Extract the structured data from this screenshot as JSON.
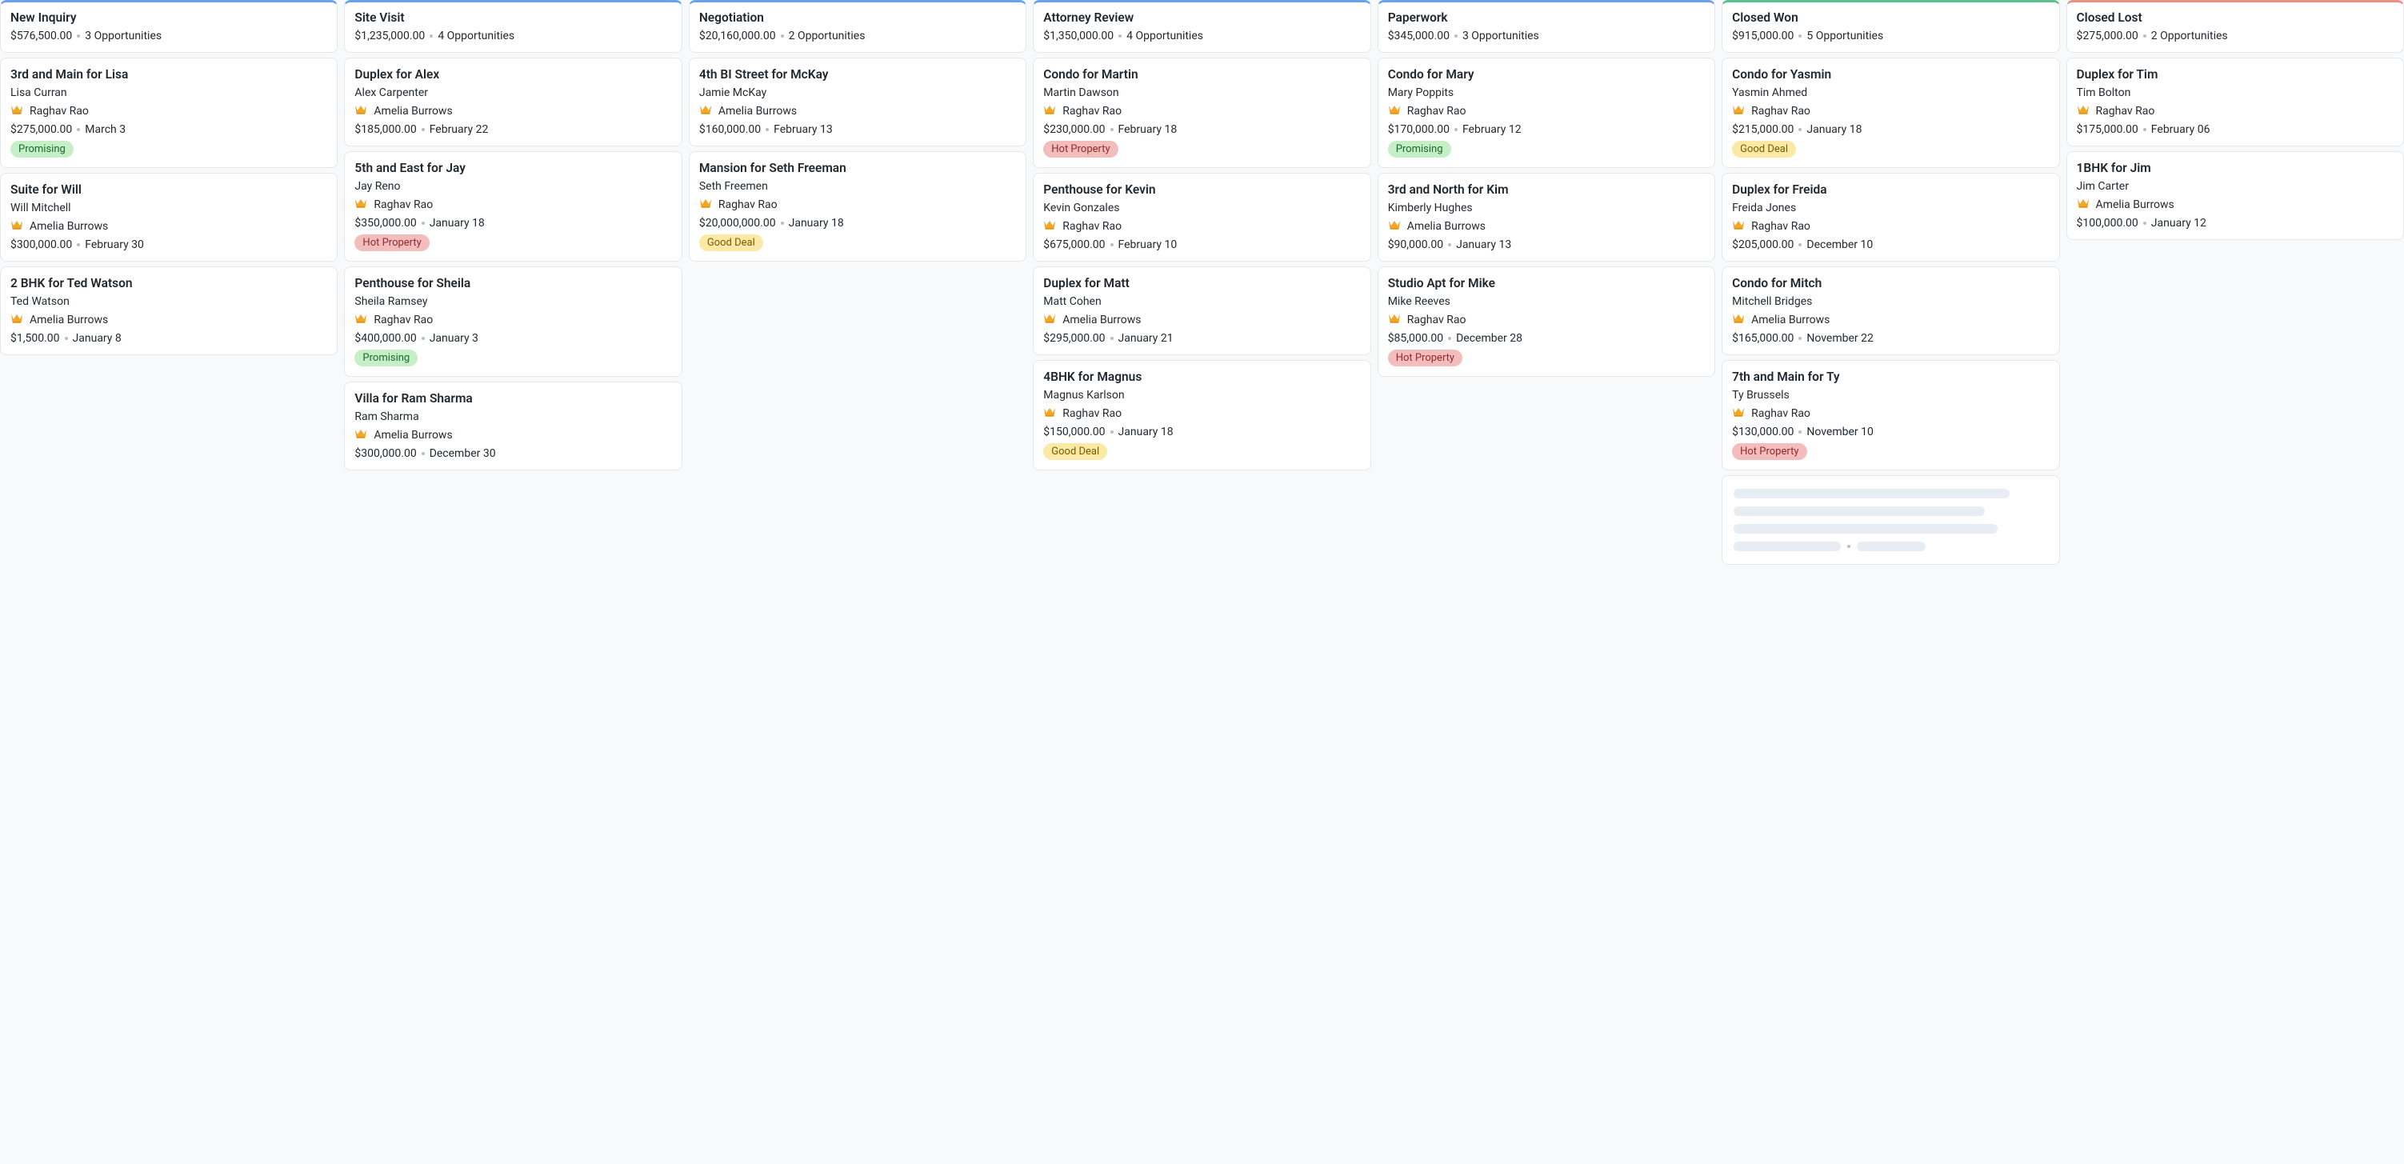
{
  "colors": {
    "border_blue": "#6aa0f0",
    "border_green": "#5bc28b",
    "border_red": "#ea8f85"
  },
  "tag_styles": {
    "Promising": "tag-promising",
    "Hot Property": "tag-hot",
    "Good Deal": "tag-good"
  },
  "columns": [
    {
      "title": "New Inquiry",
      "border_color": "#6aa0f0",
      "total": "$576,500.00",
      "count_label": "3 Opportunities",
      "cards": [
        {
          "title": "3rd and Main for Lisa",
          "contact": "Lisa Curran",
          "owner": "Raghav Rao",
          "amount": "$275,000.00",
          "date": "March 3",
          "tag": "Promising"
        },
        {
          "title": "Suite for Will",
          "contact": "Will Mitchell",
          "owner": "Amelia Burrows",
          "amount": "$300,000.00",
          "date": "February 30"
        },
        {
          "title": "2 BHK for Ted Watson",
          "contact": "Ted Watson",
          "owner": "Amelia Burrows",
          "amount": "$1,500.00",
          "date": "January 8"
        }
      ]
    },
    {
      "title": "Site Visit",
      "border_color": "#6aa0f0",
      "total": "$1,235,000.00",
      "count_label": "4 Opportunities",
      "cards": [
        {
          "title": "Duplex for Alex",
          "contact": "Alex Carpenter",
          "owner": "Amelia Burrows",
          "amount": "$185,000.00",
          "date": "February 22"
        },
        {
          "title": "5th and East for Jay",
          "contact": "Jay Reno",
          "owner": "Raghav Rao",
          "amount": "$350,000.00",
          "date": "January 18",
          "tag": "Hot Property"
        },
        {
          "title": "Penthouse for Sheila",
          "contact": "Sheila Ramsey",
          "owner": "Raghav Rao",
          "amount": "$400,000.00",
          "date": "January 3",
          "tag": "Promising"
        },
        {
          "title": "Villa for Ram Sharma",
          "contact": "Ram Sharma",
          "owner": "Amelia Burrows",
          "amount": "$300,000.00",
          "date": "December 30"
        }
      ]
    },
    {
      "title": "Negotiation",
      "border_color": "#6aa0f0",
      "total": "$20,160,000.00",
      "count_label": "2 Opportunities",
      "cards": [
        {
          "title": "4th BI Street for McKay",
          "contact": "Jamie McKay",
          "owner": "Amelia Burrows",
          "amount": "$160,000.00",
          "date": "February 13"
        },
        {
          "title": "Mansion for Seth Freeman",
          "contact": "Seth Freemen",
          "owner": "Raghav Rao",
          "amount": "$20,000,000.00",
          "date": "January 18",
          "tag": "Good Deal"
        }
      ]
    },
    {
      "title": "Attorney Review",
      "border_color": "#6aa0f0",
      "total": "$1,350,000.00",
      "count_label": "4 Opportunities",
      "cards": [
        {
          "title": "Condo for Martin",
          "contact": "Martin Dawson",
          "owner": "Raghav Rao",
          "amount": "$230,000.00",
          "date": "February 18",
          "tag": "Hot Property"
        },
        {
          "title": "Penthouse for Kevin",
          "contact": "Kevin Gonzales",
          "owner": "Raghav Rao",
          "amount": "$675,000.00",
          "date": "February 10"
        },
        {
          "title": "Duplex for Matt",
          "contact": "Matt Cohen",
          "owner": "Amelia Burrows",
          "amount": "$295,000.00",
          "date": "January 21"
        },
        {
          "title": "4BHK for Magnus",
          "contact": "Magnus Karlson",
          "owner": "Raghav Rao",
          "amount": "$150,000.00",
          "date": "January 18",
          "tag": "Good Deal"
        }
      ]
    },
    {
      "title": "Paperwork",
      "border_color": "#6aa0f0",
      "total": "$345,000.00",
      "count_label": "3 Opportunities",
      "cards": [
        {
          "title": "Condo for Mary",
          "contact": "Mary Poppits",
          "owner": "Raghav Rao",
          "amount": "$170,000.00",
          "date": "February 12",
          "tag": "Promising"
        },
        {
          "title": "3rd and North for Kim",
          "contact": "Kimberly Hughes",
          "owner": "Amelia Burrows",
          "amount": "$90,000.00",
          "date": "January 13"
        },
        {
          "title": "Studio Apt for Mike",
          "contact": "Mike Reeves",
          "owner": "Raghav Rao",
          "amount": "$85,000.00",
          "date": "December 28",
          "tag": "Hot Property"
        }
      ]
    },
    {
      "title": "Closed Won",
      "border_color": "#5bc28b",
      "total": "$915,000.00",
      "count_label": "5 Opportunities",
      "has_skeleton": true,
      "cards": [
        {
          "title": "Condo for Yasmin",
          "contact": "Yasmin Ahmed",
          "owner": "Raghav Rao",
          "amount": "$215,000.00",
          "date": "January 18",
          "tag": "Good Deal"
        },
        {
          "title": "Duplex for Freida",
          "contact": "Freida Jones",
          "owner": "Raghav Rao",
          "amount": "$205,000.00",
          "date": "December 10"
        },
        {
          "title": "Condo for Mitch",
          "contact": "Mitchell Bridges",
          "owner": "Amelia Burrows",
          "amount": "$165,000.00",
          "date": "November 22"
        },
        {
          "title": "7th and Main for Ty",
          "contact": "Ty Brussels",
          "owner": "Raghav Rao",
          "amount": "$130,000.00",
          "date": "November 10",
          "tag": "Hot Property"
        }
      ]
    },
    {
      "title": "Closed Lost",
      "border_color": "#ea8f85",
      "total": "$275,000.00",
      "count_label": "2 Opportunities",
      "cards": [
        {
          "title": "Duplex for Tim",
          "contact": "Tim Bolton",
          "owner": "Raghav Rao",
          "amount": "$175,000.00",
          "date": "February 06"
        },
        {
          "title": "1BHK for Jim",
          "contact": "Jim Carter",
          "owner": "Amelia Burrows",
          "amount": "$100,000.00",
          "date": "January 12"
        }
      ]
    }
  ]
}
